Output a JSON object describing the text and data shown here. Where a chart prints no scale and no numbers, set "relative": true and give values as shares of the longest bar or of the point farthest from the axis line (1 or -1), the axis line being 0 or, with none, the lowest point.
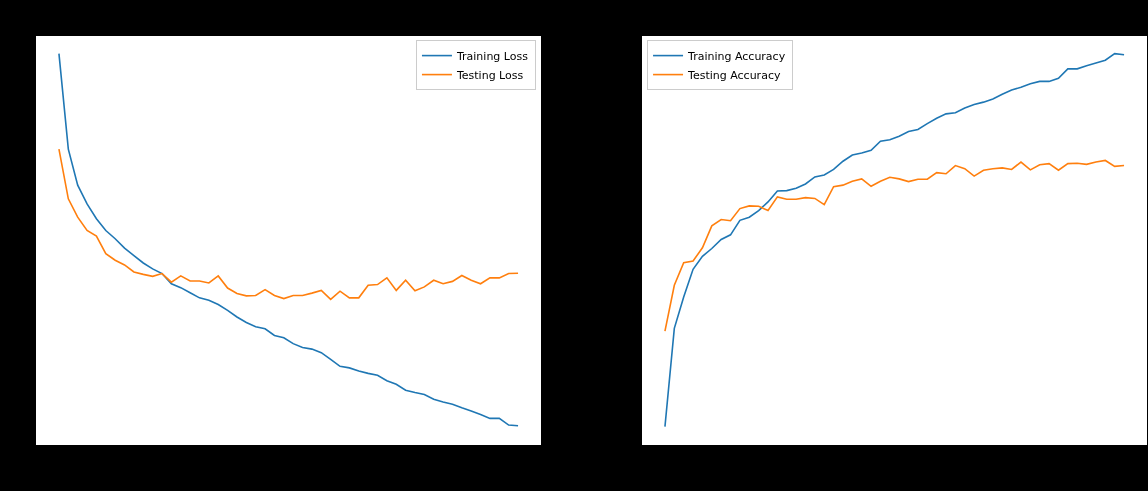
{
  "chart_data": [
    {
      "type": "line",
      "relative": true,
      "categories": [
        null,
        null,
        null,
        null,
        null,
        null,
        null,
        null,
        null,
        null,
        null,
        null,
        null,
        null,
        null,
        null,
        null,
        null,
        null,
        null,
        null,
        null,
        null,
        null,
        null,
        null,
        null,
        null,
        null,
        null,
        null,
        null,
        null,
        null,
        null,
        null,
        null,
        null,
        null,
        null,
        null,
        null,
        null,
        null,
        null,
        null,
        null,
        null,
        null,
        null
      ],
      "series": [
        {
          "name": "Training Loss",
          "color": "#1f77b4",
          "values": [
            1,
            0.756,
            0.664,
            0.616,
            0.578,
            0.548,
            0.527,
            0.503,
            0.484,
            0.465,
            0.45,
            0.438,
            0.412,
            0.402,
            0.389,
            0.376,
            0.37,
            0.359,
            0.344,
            0.327,
            0.313,
            0.302,
            0.297,
            0.28,
            0.274,
            0.259,
            0.249,
            0.245,
            0.236,
            0.219,
            0.201,
            0.197,
            0.189,
            0.183,
            0.178,
            0.164,
            0.155,
            0.14,
            0.134,
            0.129,
            0.117,
            0.11,
            0.104,
            0.095,
            0.087,
            0.078,
            0.068,
            0.068,
            0.051,
            0.049
          ]
        },
        {
          "name": "Testing Loss",
          "color": "#ff7f0e",
          "values": [
            0.756,
            0.629,
            0.582,
            0.548,
            0.534,
            0.489,
            0.472,
            0.46,
            0.442,
            0.436,
            0.431,
            0.438,
            0.416,
            0.432,
            0.419,
            0.419,
            0.414,
            0.432,
            0.401,
            0.387,
            0.381,
            0.382,
            0.397,
            0.382,
            0.374,
            0.382,
            0.382,
            0.388,
            0.395,
            0.372,
            0.393,
            0.376,
            0.376,
            0.408,
            0.41,
            0.427,
            0.395,
            0.421,
            0.394,
            0.404,
            0.421,
            0.412,
            0.418,
            0.433,
            0.421,
            0.412,
            0.427,
            0.427,
            0.438,
            0.439
          ]
        }
      ],
      "legend": "top right",
      "marker": "none",
      "line_style": "solid"
    },
    {
      "type": "line",
      "relative": true,
      "categories": [
        null,
        null,
        null,
        null,
        null,
        null,
        null,
        null,
        null,
        null,
        null,
        null,
        null,
        null,
        null,
        null,
        null,
        null,
        null,
        null,
        null,
        null,
        null,
        null,
        null,
        null,
        null,
        null,
        null,
        null,
        null,
        null,
        null,
        null,
        null,
        null,
        null,
        null,
        null,
        null,
        null,
        null,
        null,
        null,
        null,
        null,
        null,
        null,
        null,
        null
      ],
      "series": [
        {
          "name": "Training Accuracy",
          "color": "#1f77b4",
          "values": [
            0.047,
            0.298,
            0.378,
            0.449,
            0.482,
            0.502,
            0.525,
            0.537,
            0.574,
            0.582,
            0.599,
            0.621,
            0.649,
            0.65,
            0.656,
            0.667,
            0.685,
            0.69,
            0.704,
            0.725,
            0.741,
            0.746,
            0.753,
            0.776,
            0.78,
            0.789,
            0.801,
            0.806,
            0.821,
            0.835,
            0.846,
            0.849,
            0.861,
            0.87,
            0.876,
            0.884,
            0.896,
            0.907,
            0.914,
            0.923,
            0.929,
            0.929,
            0.937,
            0.961,
            0.961,
            0.969,
            0.976,
            0.983,
            1,
            0.997
          ]
        },
        {
          "name": "Testing Accuracy",
          "color": "#ff7f0e",
          "values": [
            0.291,
            0.408,
            0.466,
            0.47,
            0.504,
            0.56,
            0.576,
            0.573,
            0.604,
            0.611,
            0.61,
            0.599,
            0.634,
            0.628,
            0.628,
            0.632,
            0.63,
            0.614,
            0.66,
            0.664,
            0.674,
            0.68,
            0.661,
            0.674,
            0.684,
            0.68,
            0.673,
            0.679,
            0.679,
            0.696,
            0.693,
            0.714,
            0.706,
            0.687,
            0.702,
            0.706,
            0.708,
            0.704,
            0.723,
            0.703,
            0.716,
            0.719,
            0.702,
            0.719,
            0.72,
            0.717,
            0.723,
            0.727,
            0.712,
            0.714
          ]
        }
      ],
      "legend": "top left",
      "marker": "none",
      "line_style": "solid"
    }
  ]
}
